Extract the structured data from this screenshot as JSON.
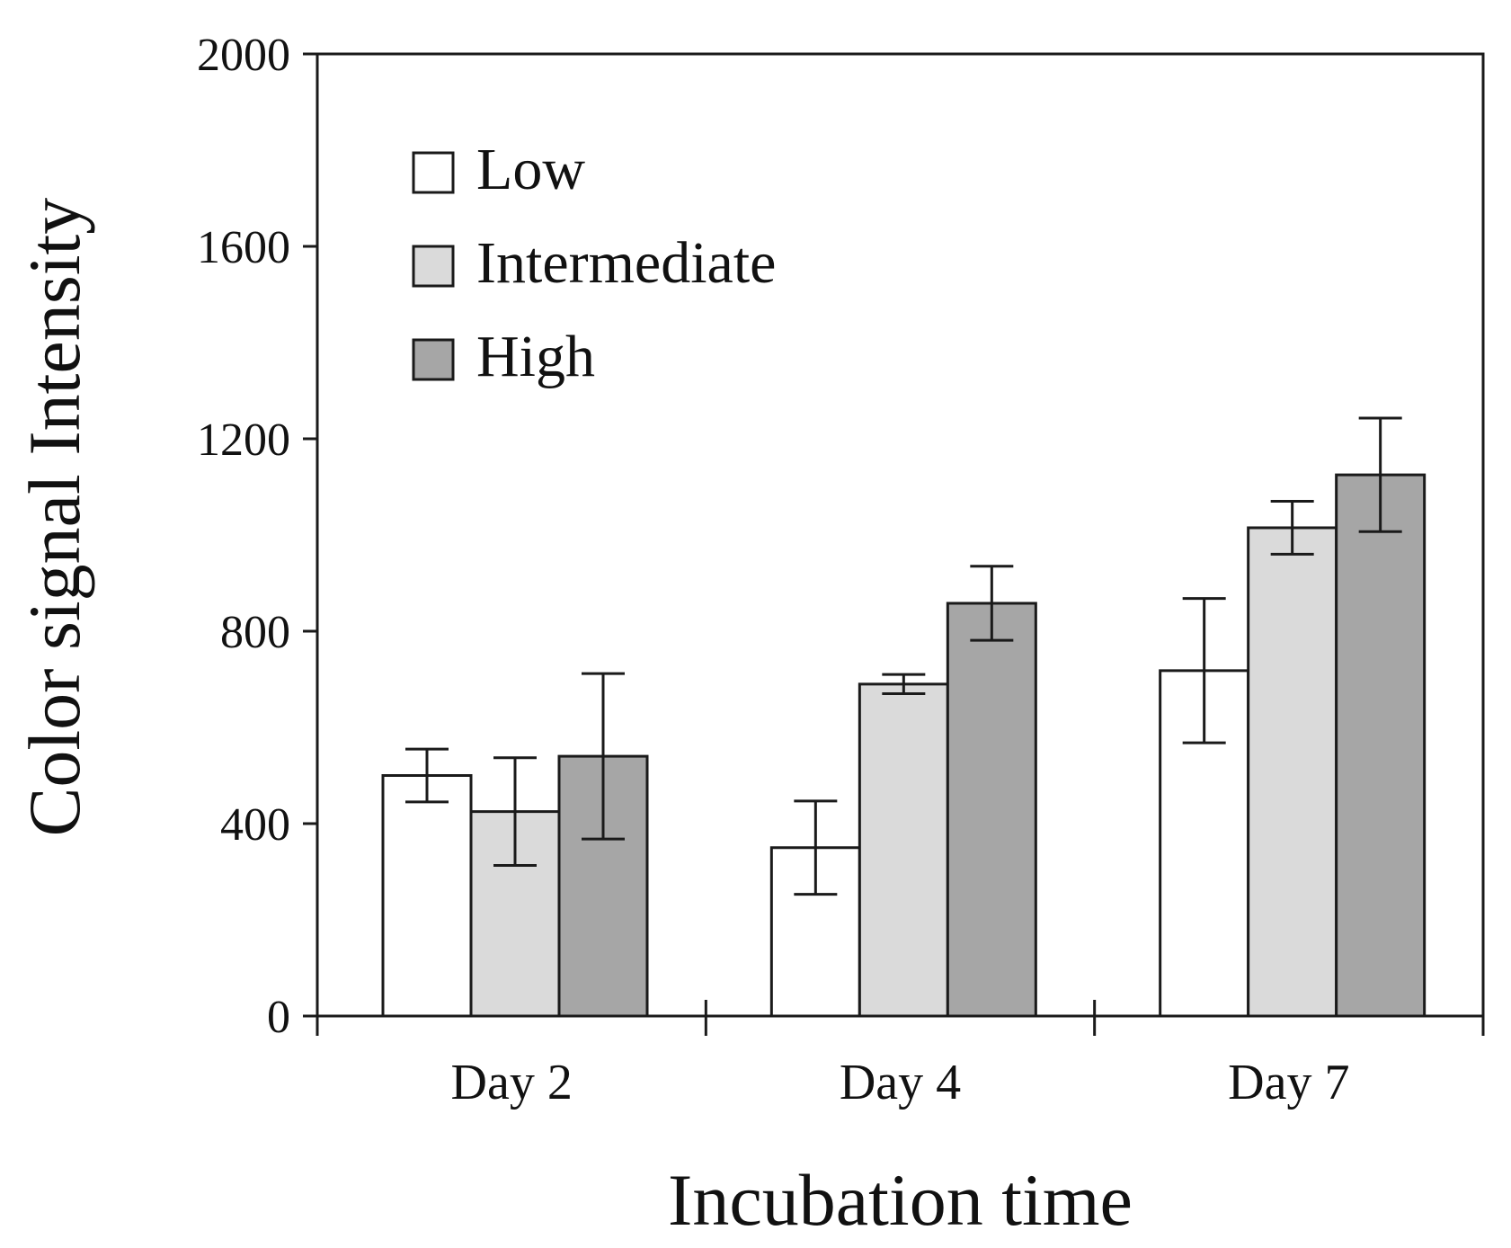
{
  "chart_data": {
    "type": "bar",
    "title": "",
    "xlabel": "Incubation time",
    "ylabel": "Color signal Intensity",
    "ylim": [
      0,
      2000
    ],
    "yticks": [
      0,
      400,
      800,
      1200,
      1600,
      2000
    ],
    "ytick_labels": [
      "0",
      "400",
      "800",
      "1200",
      "1600",
      "2000"
    ],
    "categories": [
      "Day 2",
      "Day 4",
      "Day 7"
    ],
    "series": [
      {
        "name": "Low",
        "color": "#ffffff",
        "values": [
          500,
          350,
          718
        ],
        "errors": [
          55,
          97,
          150
        ]
      },
      {
        "name": "Intermediate",
        "color": "#dadada",
        "values": [
          425,
          690,
          1015
        ],
        "errors": [
          112,
          20,
          55
        ]
      },
      {
        "name": "High",
        "color": "#a6a6a6",
        "values": [
          540,
          858,
          1125
        ],
        "errors": [
          172,
          77,
          118
        ]
      }
    ],
    "legend_position": "top-left",
    "grid": false
  }
}
